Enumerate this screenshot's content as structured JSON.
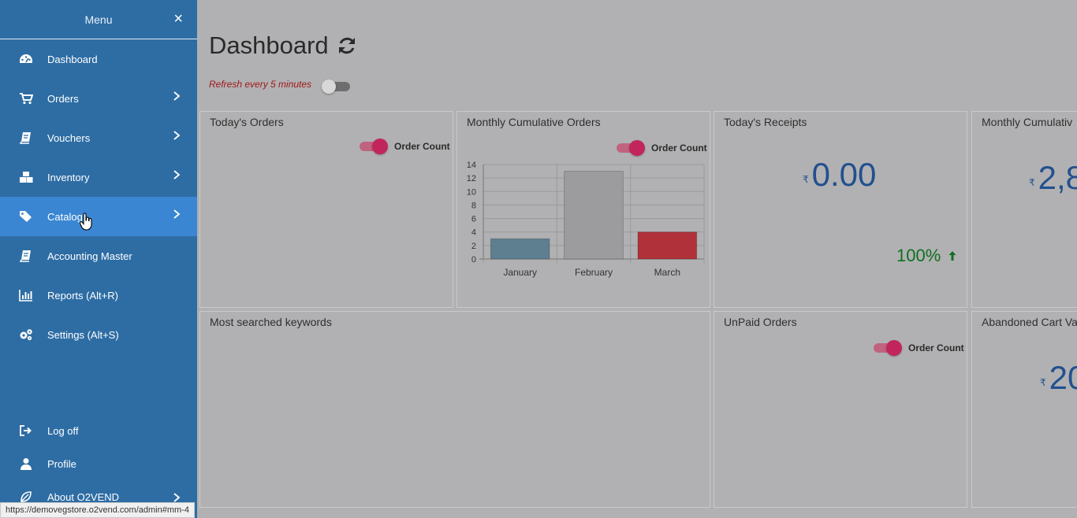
{
  "sidebar": {
    "title": "Menu",
    "close_label": "×",
    "items": [
      {
        "label": "Dashboard"
      },
      {
        "label": "Orders"
      },
      {
        "label": "Vouchers"
      },
      {
        "label": "Inventory"
      },
      {
        "label": "Catalog"
      },
      {
        "label": "Accounting Master"
      },
      {
        "label": "Reports (Alt+R)"
      },
      {
        "label": "Settings (Alt+S)"
      }
    ],
    "bottom_items": [
      {
        "label": "Log off"
      },
      {
        "label": "Profile"
      },
      {
        "label": "About O2VEND"
      }
    ]
  },
  "header": {
    "title": "Dashboard",
    "refresh_label": "Refresh every 5 minutes"
  },
  "cards": {
    "todays_orders": {
      "title": "Today's Orders",
      "legend": "Order Count"
    },
    "monthly_cumulative_orders": {
      "title": "Monthly Cumulative Orders",
      "legend": "Order Count"
    },
    "todays_receipts": {
      "title": "Today's Receipts",
      "currency": "₹",
      "amount": "0.00",
      "percent": "100%"
    },
    "monthly_cumulative_receipts": {
      "title": "Monthly Cumulativ",
      "currency": "₹",
      "amount": "2,8"
    },
    "most_searched_keywords": {
      "title": "Most searched keywords"
    },
    "unpaid_orders": {
      "title": "UnPaid Orders",
      "legend": "Order Count"
    },
    "abandoned_cart": {
      "title": "Abandoned Cart Va",
      "currency": "₹",
      "amount": "20"
    }
  },
  "chart_data": {
    "type": "bar",
    "categories": [
      "January",
      "February",
      "March"
    ],
    "values": [
      3,
      13,
      4
    ],
    "colors": [
      "#5d7f8f",
      "#9c9c9e",
      "#b0313a"
    ],
    "yticks": [
      0,
      2,
      4,
      6,
      8,
      10,
      12,
      14
    ],
    "ylim": [
      0,
      14
    ],
    "legend": "Order Count",
    "grid": true
  },
  "colors": {
    "sidebar": "#2e6da4",
    "sidebar_active": "#3a86d2",
    "amount": "#22508f",
    "positive": "#0f6f1f",
    "toggle_on": "#c2255c"
  },
  "status_bar": {
    "url": "https://demovegstore.o2vend.com/admin#mm-4"
  }
}
